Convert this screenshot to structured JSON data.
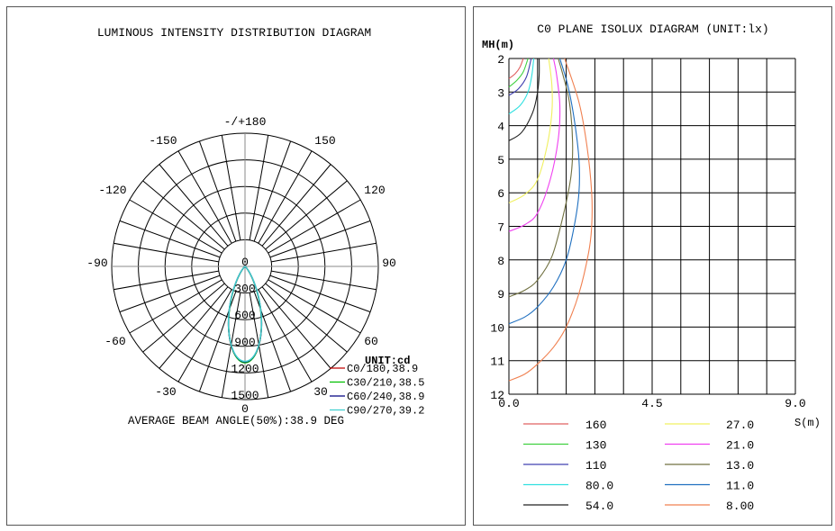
{
  "polar": {
    "title": "LUMINOUS INTENSITY DISTRIBUTION DIAGRAM",
    "unit_label": "UNIT:cd",
    "beam_angle_text": "AVERAGE BEAM ANGLE(50%):38.9 DEG",
    "angle_labels": [
      "0",
      "30",
      "60",
      "90",
      "120",
      "150",
      "-/+180",
      "-150",
      "-120",
      "-90",
      "-60",
      "-30"
    ],
    "radial_labels": [
      "0",
      "300",
      "600",
      "900",
      "1200",
      "1500"
    ]
  },
  "isolux": {
    "title": "C0 PLANE ISOLUX DIAGRAM (UNIT:lx)",
    "ylabel": "MH(m)",
    "xlabel": "S(m)",
    "y_ticks": [
      "2",
      "3",
      "4",
      "5",
      "6",
      "7",
      "8",
      "9",
      "10",
      "11",
      "12"
    ],
    "x_ticks": [
      "0.0",
      "4.5",
      "9.0"
    ]
  },
  "chart_data": [
    {
      "type": "polar-line",
      "title": "LUMINOUS INTENSITY DISTRIBUTION DIAGRAM",
      "unit": "cd",
      "radial_range": [
        0,
        1500
      ],
      "radial_ticks": [
        0,
        300,
        600,
        900,
        1200,
        1500
      ],
      "angle_ticks_deg": [
        0,
        30,
        60,
        90,
        120,
        150,
        180,
        -150,
        -120,
        -90,
        -60,
        -30
      ],
      "grid": true,
      "legend_position": "bottom-right",
      "gamma_deg": [
        0,
        5,
        10,
        15,
        20,
        25,
        30,
        35,
        40,
        45,
        50,
        55,
        60
      ],
      "series": [
        {
          "name": "C0/180,38.9",
          "color": "#c00000",
          "values": [
            1080,
            1033,
            902,
            717,
            518,
            338,
            198,
            103,
            47,
            20,
            8,
            3,
            0
          ]
        },
        {
          "name": "C30/210,38.5",
          "color": "#00c000",
          "values": [
            1085,
            1036,
            900,
            710,
            508,
            328,
            190,
            97,
            44,
            18,
            7,
            2,
            0
          ]
        },
        {
          "name": "C60/240,38.9",
          "color": "#000080",
          "values": [
            1075,
            1028,
            898,
            714,
            516,
            337,
            197,
            102,
            47,
            20,
            8,
            3,
            0
          ]
        },
        {
          "name": "C90/270,39.2",
          "color": "#40d0d0",
          "values": [
            1070,
            1025,
            897,
            716,
            521,
            343,
            203,
            107,
            50,
            22,
            9,
            3,
            0
          ]
        }
      ],
      "average_beam_angle_deg": 38.9
    },
    {
      "type": "line",
      "title": "C0 PLANE ISOLUX DIAGRAM (UNIT:lx)",
      "xlabel": "S(m)",
      "ylabel": "MH(m)",
      "xlim": [
        0,
        9.0
      ],
      "ylim": [
        2,
        12
      ],
      "y_inverted": true,
      "grid": true,
      "legend_position": "bottom",
      "series": [
        {
          "name": "160",
          "color": "#e06060",
          "points": [
            [
              0,
              2.6
            ],
            [
              0.2,
              2.45
            ],
            [
              0.35,
              2.25
            ],
            [
              0.45,
              2
            ]
          ]
        },
        {
          "name": "130",
          "color": "#40d040",
          "points": [
            [
              0,
              2.85
            ],
            [
              0.25,
              2.65
            ],
            [
              0.45,
              2.4
            ],
            [
              0.6,
              2
            ]
          ]
        },
        {
          "name": "110",
          "color": "#4040b0",
          "points": [
            [
              0,
              3.1
            ],
            [
              0.3,
              2.9
            ],
            [
              0.55,
              2.55
            ],
            [
              0.7,
              2
            ]
          ]
        },
        {
          "name": "80.0",
          "color": "#30e0e0",
          "points": [
            [
              0,
              3.65
            ],
            [
              0.35,
              3.4
            ],
            [
              0.6,
              3.0
            ],
            [
              0.72,
              2.5
            ],
            [
              0.78,
              2
            ]
          ]
        },
        {
          "name": "54.0",
          "color": "#202020",
          "points": [
            [
              0,
              4.45
            ],
            [
              0.4,
              4.2
            ],
            [
              0.75,
              3.6
            ],
            [
              0.9,
              3.0
            ],
            [
              0.95,
              2.5
            ],
            [
              0.95,
              2
            ]
          ]
        },
        {
          "name": "27.0",
          "color": "#f0f060",
          "points": [
            [
              0,
              6.3
            ],
            [
              0.5,
              6.05
            ],
            [
              0.9,
              5.6
            ],
            [
              1.2,
              4.6
            ],
            [
              1.35,
              3.6
            ],
            [
              1.35,
              2.8
            ],
            [
              1.25,
              2
            ]
          ]
        },
        {
          "name": "21.0",
          "color": "#f040f0",
          "points": [
            [
              0,
              7.15
            ],
            [
              0.5,
              6.95
            ],
            [
              0.9,
              6.6
            ],
            [
              1.3,
              5.6
            ],
            [
              1.55,
              4.4
            ],
            [
              1.6,
              3.4
            ],
            [
              1.5,
              2.5
            ],
            [
              1.4,
              2
            ]
          ]
        },
        {
          "name": "13.0",
          "color": "#707040",
          "points": [
            [
              0,
              9.1
            ],
            [
              0.5,
              8.9
            ],
            [
              0.9,
              8.6
            ],
            [
              1.35,
              7.9
            ],
            [
              1.7,
              6.7
            ],
            [
              1.95,
              5.5
            ],
            [
              2.0,
              4.5
            ],
            [
              1.9,
              3.3
            ],
            [
              1.7,
              2.5
            ],
            [
              1.55,
              2
            ]
          ]
        },
        {
          "name": "11.0",
          "color": "#2070c0",
          "points": [
            [
              0,
              9.9
            ],
            [
              0.5,
              9.7
            ],
            [
              0.9,
              9.4
            ],
            [
              1.4,
              8.8
            ],
            [
              1.8,
              8.0
            ],
            [
              2.05,
              7.0
            ],
            [
              2.2,
              6.0
            ],
            [
              2.2,
              5.0
            ],
            [
              2.05,
              3.8
            ],
            [
              1.85,
              2.8
            ],
            [
              1.6,
              2
            ]
          ]
        },
        {
          "name": "8.00",
          "color": "#f08050",
          "points": [
            [
              0,
              11.6
            ],
            [
              0.5,
              11.4
            ],
            [
              0.9,
              11.1
            ],
            [
              1.4,
              10.6
            ],
            [
              1.8,
              10.0
            ],
            [
              2.2,
              9.0
            ],
            [
              2.5,
              7.8
            ],
            [
              2.6,
              7.0
            ],
            [
              2.6,
              6.0
            ],
            [
              2.45,
              4.6
            ],
            [
              2.2,
              3.3
            ],
            [
              1.75,
              2
            ]
          ]
        }
      ]
    }
  ]
}
